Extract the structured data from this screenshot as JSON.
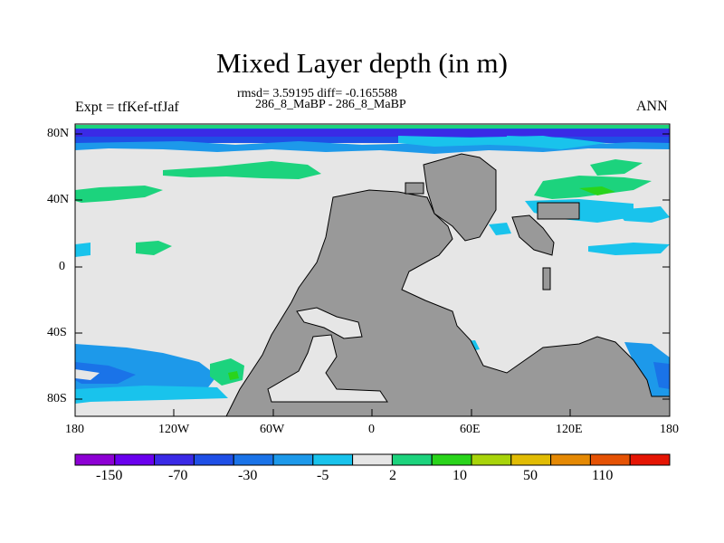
{
  "title": "Mixed Layer depth (in m)",
  "subtitle_stats": "rmsd= 3.59195 diff= -0.165588",
  "subtitle_case": "286_8_MaBP - 286_8_MaBP",
  "left_label": "Expt = tfKef-tfJaf",
  "right_label": "ANN",
  "map": {
    "lon_ticks": [
      "180",
      "120W",
      "60W",
      "0",
      "60E",
      "120E",
      "180"
    ],
    "lat_ticks": [
      "80N",
      "40N",
      "0",
      "40S",
      "80S"
    ],
    "ocean_color": "#e6e6e6",
    "land_color": "#999999"
  },
  "colorbar": {
    "colors": [
      "#8d00d4",
      "#6a00ee",
      "#3a2ae6",
      "#1f4fe6",
      "#1a73e8",
      "#1d99ea",
      "#19c3ec",
      "#e6e6e6",
      "#1cd37d",
      "#2ad41b",
      "#a8d40a",
      "#e1bc04",
      "#e58904",
      "#e55204",
      "#e51504"
    ],
    "labels": [
      "-150",
      "-70",
      "-30",
      "-5",
      "2",
      "10",
      "50",
      "110"
    ]
  }
}
